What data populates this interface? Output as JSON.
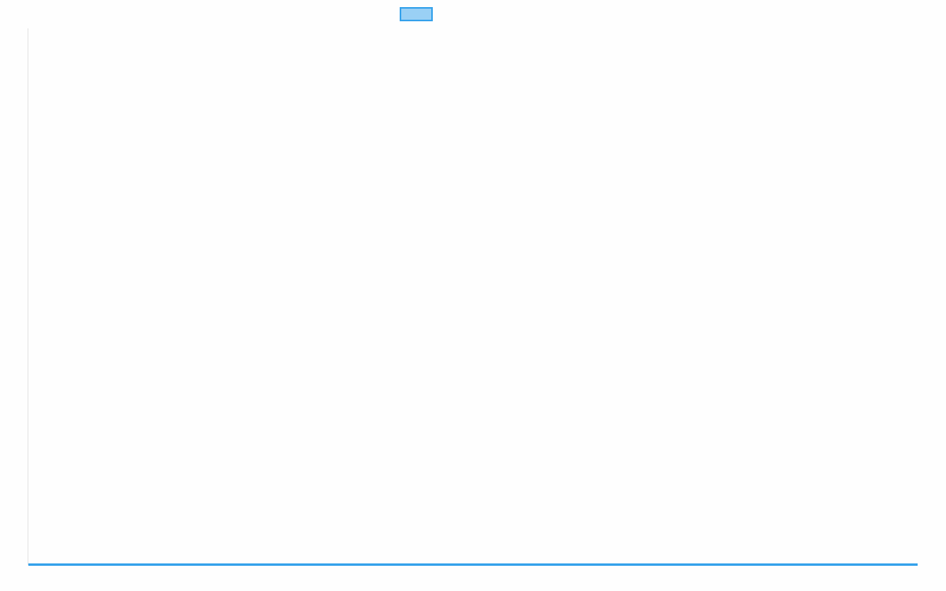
{
  "chart_data": {
    "type": "line",
    "title": "",
    "xlabel": "",
    "ylabel": "",
    "categories": [],
    "series": [
      {
        "label": "",
        "values": [],
        "color": "#36a2eb",
        "fill": "rgba(54,162,235,0.5)"
      }
    ],
    "legend": "top",
    "grid": false,
    "axis_color": "#e0e0e0"
  }
}
